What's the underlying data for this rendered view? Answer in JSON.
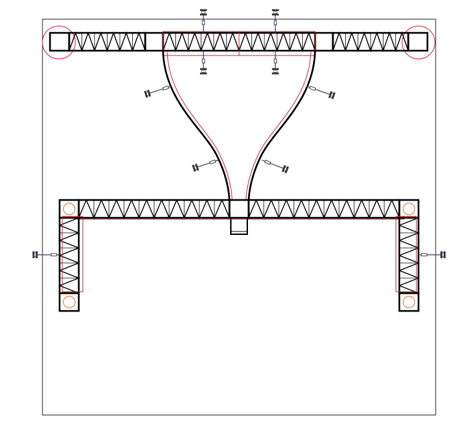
{
  "drawing": {
    "kind": "truss stage plan",
    "has_text": false
  },
  "colors": {
    "background": "#ffffff",
    "frame": "#222222",
    "truss": "#000000",
    "outline": "#cc2233",
    "fixture": "#333333",
    "cable": "#3a3a6a",
    "base_circle": "#e07030"
  },
  "symbols": {
    "lighting_fixture": "spotlight-icon",
    "corner_block": "corner-block",
    "top_corner_marker": "red-circle-marker",
    "base_plate": "orange-circle-base"
  }
}
